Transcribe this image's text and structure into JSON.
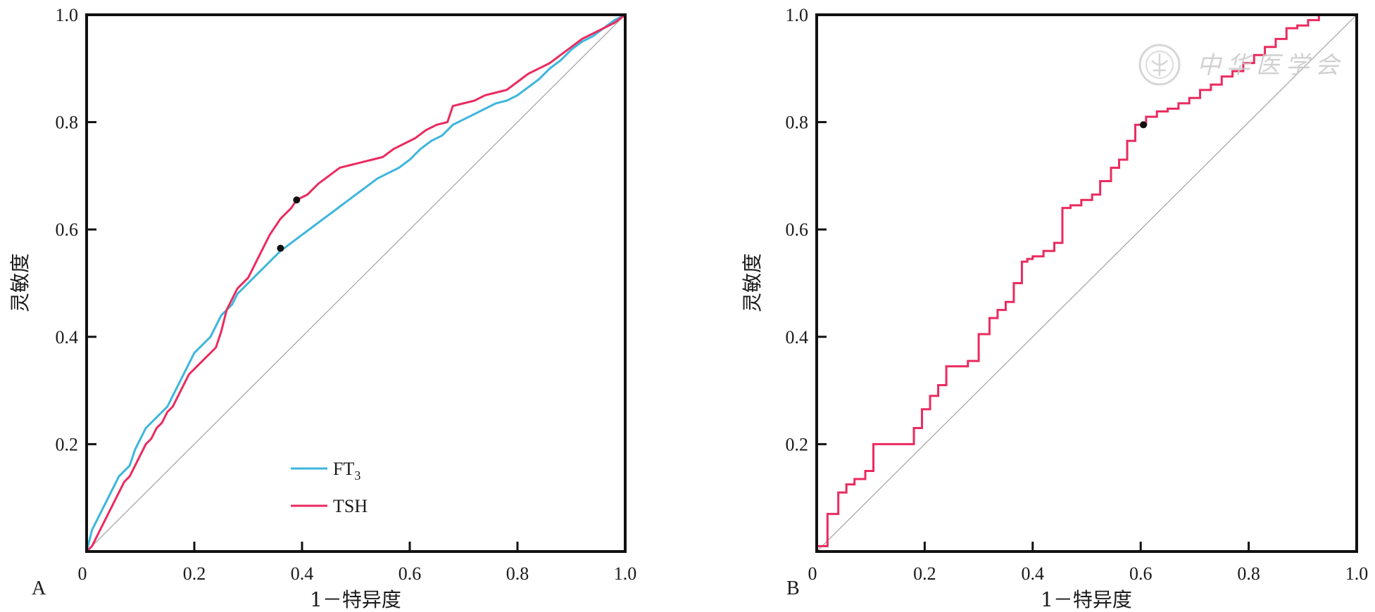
{
  "chart_data": [
    {
      "panel_label": "A",
      "type": "line",
      "xlabel": "1－特异度",
      "ylabel": "灵敏度",
      "xlim": [
        0,
        1
      ],
      "ylim": [
        0,
        1
      ],
      "x_ticks": [
        "0",
        "0.2",
        "0.4",
        "0.6",
        "0.8",
        "1.0"
      ],
      "y_ticks": [
        "0.2",
        "0.4",
        "0.6",
        "0.8",
        "1.0"
      ],
      "grid": false,
      "legend_position": "bottom-center",
      "reference_line": true,
      "series": [
        {
          "name": "FT3",
          "name_base": "FT",
          "name_sub": "3",
          "color": "#3db6dc",
          "points": [
            [
              0,
              0
            ],
            [
              0.01,
              0.04
            ],
            [
              0.02,
              0.06
            ],
            [
              0.03,
              0.08
            ],
            [
              0.04,
              0.1
            ],
            [
              0.05,
              0.12
            ],
            [
              0.06,
              0.14
            ],
            [
              0.08,
              0.16
            ],
            [
              0.09,
              0.19
            ],
            [
              0.1,
              0.21
            ],
            [
              0.11,
              0.23
            ],
            [
              0.13,
              0.25
            ],
            [
              0.15,
              0.27
            ],
            [
              0.16,
              0.29
            ],
            [
              0.17,
              0.31
            ],
            [
              0.18,
              0.33
            ],
            [
              0.19,
              0.35
            ],
            [
              0.2,
              0.37
            ],
            [
              0.21,
              0.38
            ],
            [
              0.22,
              0.39
            ],
            [
              0.23,
              0.4
            ],
            [
              0.24,
              0.42
            ],
            [
              0.25,
              0.44
            ],
            [
              0.27,
              0.46
            ],
            [
              0.28,
              0.48
            ],
            [
              0.3,
              0.5
            ],
            [
              0.32,
              0.52
            ],
            [
              0.34,
              0.54
            ],
            [
              0.36,
              0.56
            ],
            [
              0.38,
              0.575
            ],
            [
              0.4,
              0.59
            ],
            [
              0.42,
              0.605
            ],
            [
              0.44,
              0.62
            ],
            [
              0.46,
              0.635
            ],
            [
              0.48,
              0.65
            ],
            [
              0.5,
              0.665
            ],
            [
              0.52,
              0.68
            ],
            [
              0.54,
              0.695
            ],
            [
              0.56,
              0.705
            ],
            [
              0.58,
              0.715
            ],
            [
              0.6,
              0.73
            ],
            [
              0.62,
              0.75
            ],
            [
              0.64,
              0.765
            ],
            [
              0.66,
              0.775
            ],
            [
              0.68,
              0.795
            ],
            [
              0.7,
              0.805
            ],
            [
              0.72,
              0.815
            ],
            [
              0.74,
              0.825
            ],
            [
              0.76,
              0.835
            ],
            [
              0.78,
              0.84
            ],
            [
              0.8,
              0.85
            ],
            [
              0.82,
              0.865
            ],
            [
              0.84,
              0.88
            ],
            [
              0.86,
              0.9
            ],
            [
              0.88,
              0.915
            ],
            [
              0.9,
              0.935
            ],
            [
              0.92,
              0.95
            ],
            [
              0.94,
              0.96
            ],
            [
              0.96,
              0.975
            ],
            [
              0.98,
              0.99
            ],
            [
              1,
              1
            ]
          ]
        },
        {
          "name": "TSH",
          "color": "#ea2b5f",
          "points": [
            [
              0,
              0
            ],
            [
              0.01,
              0.01
            ],
            [
              0.02,
              0.03
            ],
            [
              0.03,
              0.05
            ],
            [
              0.04,
              0.07
            ],
            [
              0.05,
              0.09
            ],
            [
              0.06,
              0.11
            ],
            [
              0.07,
              0.13
            ],
            [
              0.08,
              0.14
            ],
            [
              0.09,
              0.16
            ],
            [
              0.1,
              0.18
            ],
            [
              0.11,
              0.2
            ],
            [
              0.12,
              0.21
            ],
            [
              0.13,
              0.23
            ],
            [
              0.14,
              0.24
            ],
            [
              0.15,
              0.26
            ],
            [
              0.16,
              0.27
            ],
            [
              0.17,
              0.29
            ],
            [
              0.18,
              0.31
            ],
            [
              0.19,
              0.33
            ],
            [
              0.2,
              0.34
            ],
            [
              0.21,
              0.35
            ],
            [
              0.22,
              0.36
            ],
            [
              0.23,
              0.37
            ],
            [
              0.24,
              0.38
            ],
            [
              0.25,
              0.41
            ],
            [
              0.26,
              0.45
            ],
            [
              0.27,
              0.47
            ],
            [
              0.28,
              0.49
            ],
            [
              0.3,
              0.51
            ],
            [
              0.32,
              0.55
            ],
            [
              0.34,
              0.59
            ],
            [
              0.36,
              0.62
            ],
            [
              0.38,
              0.64
            ],
            [
              0.39,
              0.655
            ],
            [
              0.41,
              0.665
            ],
            [
              0.43,
              0.685
            ],
            [
              0.45,
              0.7
            ],
            [
              0.47,
              0.715
            ],
            [
              0.49,
              0.72
            ],
            [
              0.51,
              0.725
            ],
            [
              0.53,
              0.73
            ],
            [
              0.55,
              0.735
            ],
            [
              0.57,
              0.75
            ],
            [
              0.59,
              0.76
            ],
            [
              0.61,
              0.77
            ],
            [
              0.63,
              0.785
            ],
            [
              0.65,
              0.795
            ],
            [
              0.67,
              0.8
            ],
            [
              0.68,
              0.83
            ],
            [
              0.7,
              0.835
            ],
            [
              0.72,
              0.84
            ],
            [
              0.74,
              0.85
            ],
            [
              0.76,
              0.855
            ],
            [
              0.78,
              0.86
            ],
            [
              0.8,
              0.875
            ],
            [
              0.82,
              0.89
            ],
            [
              0.84,
              0.9
            ],
            [
              0.86,
              0.91
            ],
            [
              0.88,
              0.925
            ],
            [
              0.9,
              0.94
            ],
            [
              0.92,
              0.955
            ],
            [
              0.94,
              0.965
            ],
            [
              0.96,
              0.975
            ],
            [
              0.98,
              0.985
            ],
            [
              1,
              1
            ]
          ]
        }
      ],
      "cutoff_points": [
        {
          "series": "FT3",
          "x": 0.36,
          "y": 0.565
        },
        {
          "series": "TSH",
          "x": 0.39,
          "y": 0.655
        }
      ]
    },
    {
      "panel_label": "B",
      "type": "line",
      "xlabel": "1－特异度",
      "ylabel": "灵敏度",
      "xlim": [
        0,
        1
      ],
      "ylim": [
        0,
        1
      ],
      "x_ticks": [
        "0",
        "0.2",
        "0.4",
        "0.6",
        "0.8",
        "1.0"
      ],
      "y_ticks": [
        "0.2",
        "0.4",
        "0.6",
        "0.8",
        "1.0"
      ],
      "grid": false,
      "reference_line": true,
      "series": [
        {
          "color": "#ea2b5f",
          "step": true,
          "points": [
            [
              0,
              0
            ],
            [
              0,
              0.01
            ],
            [
              0.02,
              0.01
            ],
            [
              0.02,
              0.07
            ],
            [
              0.04,
              0.07
            ],
            [
              0.04,
              0.11
            ],
            [
              0.055,
              0.11
            ],
            [
              0.055,
              0.125
            ],
            [
              0.07,
              0.125
            ],
            [
              0.07,
              0.135
            ],
            [
              0.09,
              0.135
            ],
            [
              0.09,
              0.15
            ],
            [
              0.105,
              0.15
            ],
            [
              0.105,
              0.2
            ],
            [
              0.18,
              0.2
            ],
            [
              0.18,
              0.23
            ],
            [
              0.195,
              0.23
            ],
            [
              0.195,
              0.265
            ],
            [
              0.21,
              0.265
            ],
            [
              0.21,
              0.29
            ],
            [
              0.225,
              0.29
            ],
            [
              0.225,
              0.31
            ],
            [
              0.24,
              0.31
            ],
            [
              0.24,
              0.345
            ],
            [
              0.28,
              0.345
            ],
            [
              0.28,
              0.355
            ],
            [
              0.3,
              0.355
            ],
            [
              0.3,
              0.405
            ],
            [
              0.32,
              0.405
            ],
            [
              0.32,
              0.435
            ],
            [
              0.335,
              0.435
            ],
            [
              0.335,
              0.45
            ],
            [
              0.35,
              0.45
            ],
            [
              0.35,
              0.465
            ],
            [
              0.365,
              0.465
            ],
            [
              0.365,
              0.5
            ],
            [
              0.38,
              0.5
            ],
            [
              0.38,
              0.54
            ],
            [
              0.39,
              0.54
            ],
            [
              0.39,
              0.545
            ],
            [
              0.4,
              0.545
            ],
            [
              0.4,
              0.55
            ],
            [
              0.42,
              0.55
            ],
            [
              0.42,
              0.56
            ],
            [
              0.44,
              0.56
            ],
            [
              0.44,
              0.575
            ],
            [
              0.455,
              0.575
            ],
            [
              0.455,
              0.64
            ],
            [
              0.47,
              0.64
            ],
            [
              0.47,
              0.645
            ],
            [
              0.49,
              0.645
            ],
            [
              0.49,
              0.655
            ],
            [
              0.51,
              0.655
            ],
            [
              0.51,
              0.665
            ],
            [
              0.525,
              0.665
            ],
            [
              0.525,
              0.69
            ],
            [
              0.545,
              0.69
            ],
            [
              0.545,
              0.715
            ],
            [
              0.56,
              0.715
            ],
            [
              0.56,
              0.73
            ],
            [
              0.575,
              0.73
            ],
            [
              0.575,
              0.765
            ],
            [
              0.59,
              0.765
            ],
            [
              0.59,
              0.795
            ],
            [
              0.61,
              0.795
            ],
            [
              0.61,
              0.81
            ],
            [
              0.63,
              0.81
            ],
            [
              0.63,
              0.82
            ],
            [
              0.65,
              0.82
            ],
            [
              0.65,
              0.825
            ],
            [
              0.67,
              0.825
            ],
            [
              0.67,
              0.835
            ],
            [
              0.69,
              0.835
            ],
            [
              0.69,
              0.845
            ],
            [
              0.71,
              0.845
            ],
            [
              0.71,
              0.86
            ],
            [
              0.73,
              0.86
            ],
            [
              0.73,
              0.87
            ],
            [
              0.75,
              0.87
            ],
            [
              0.75,
              0.885
            ],
            [
              0.77,
              0.885
            ],
            [
              0.77,
              0.895
            ],
            [
              0.79,
              0.895
            ],
            [
              0.79,
              0.91
            ],
            [
              0.81,
              0.91
            ],
            [
              0.81,
              0.925
            ],
            [
              0.83,
              0.925
            ],
            [
              0.83,
              0.94
            ],
            [
              0.85,
              0.94
            ],
            [
              0.85,
              0.955
            ],
            [
              0.87,
              0.955
            ],
            [
              0.87,
              0.975
            ],
            [
              0.89,
              0.975
            ],
            [
              0.89,
              0.98
            ],
            [
              0.91,
              0.98
            ],
            [
              0.91,
              0.99
            ],
            [
              0.93,
              0.99
            ],
            [
              0.93,
              1
            ],
            [
              1,
              1
            ]
          ]
        }
      ],
      "cutoff_points": [
        {
          "x": 0.605,
          "y": 0.795
        }
      ]
    }
  ],
  "watermark": {
    "text": "中华医学会",
    "color": "#c9c9c9"
  }
}
